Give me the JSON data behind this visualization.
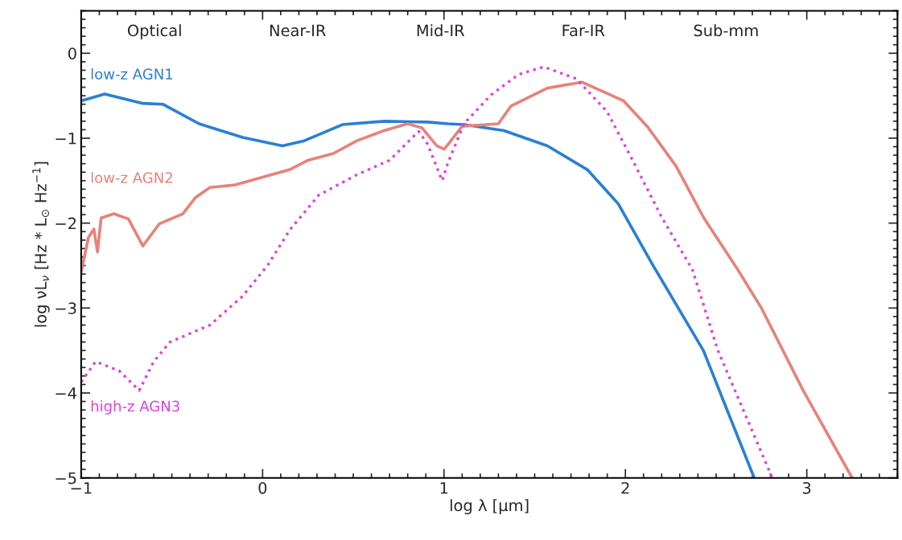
{
  "chart_data": {
    "type": "line",
    "xlabel": "log λ [μm]",
    "ylabel": "log νL$_{ν}$ [Hz * L$_{⊙}$ Hz$^{−1}$]",
    "xlim": [
      -1,
      3.5
    ],
    "ylim": [
      -5,
      0.5
    ],
    "xticks": [
      {
        "value": -1,
        "label": "−1"
      },
      0,
      1,
      2,
      3
    ],
    "yticks": [
      {
        "value": -5,
        "label": "−5"
      },
      {
        "value": -4,
        "label": "−4"
      },
      {
        "value": -3,
        "label": "−3"
      },
      {
        "value": -2,
        "label": "−2"
      },
      {
        "value": -1,
        "label": "−1"
      },
      0
    ],
    "grid": false,
    "legend": false,
    "marker": "none",
    "annotations": [
      "Optical",
      "Near-IR",
      "Mid-IR",
      "Far-IR",
      "Sub-mm"
    ],
    "series": [
      {
        "name": "low-z AGN1",
        "color": "#2a7fd4",
        "line_style": "solid",
        "x": [
          -1,
          -0.87,
          -0.66,
          -0.55,
          -0.35,
          -0.11,
          0.11,
          0.23,
          0.44,
          0.67,
          0.91,
          1.02,
          1.11,
          1.33,
          1.57,
          1.79,
          1.96,
          2.15,
          2.43,
          2.71
        ],
        "values": [
          -0.56,
          -0.48,
          -0.59,
          -0.6,
          -0.83,
          -0.99,
          -1.09,
          -1.03,
          -0.84,
          -0.8,
          -0.81,
          -0.83,
          -0.84,
          -0.91,
          -1.09,
          -1.37,
          -1.77,
          -2.49,
          -3.5,
          -5
        ]
      },
      {
        "name": "low-z AGN2",
        "color": "#e8827a",
        "line_style": "solid",
        "x": [
          -1,
          -0.96,
          -0.93,
          -0.91,
          -0.89,
          -0.82,
          -0.74,
          -0.66,
          -0.57,
          -0.44,
          -0.37,
          -0.29,
          -0.15,
          0.0,
          0.15,
          0.25,
          0.39,
          0.52,
          0.67,
          0.8,
          0.88,
          0.96,
          1.0,
          1.02,
          1.1,
          1.3,
          1.37,
          1.57,
          1.76,
          1.99,
          2.12,
          2.28,
          2.43,
          2.62,
          2.75,
          2.98,
          3.25
        ],
        "values": [
          -2.58,
          -2.17,
          -2.07,
          -2.34,
          -1.94,
          -1.89,
          -1.95,
          -2.27,
          -2.01,
          -1.89,
          -1.7,
          -1.58,
          -1.55,
          -1.46,
          -1.37,
          -1.26,
          -1.18,
          -1.03,
          -0.91,
          -0.83,
          -0.88,
          -1.09,
          -1.13,
          -1.08,
          -0.86,
          -0.83,
          -0.62,
          -0.41,
          -0.34,
          -0.56,
          -0.86,
          -1.33,
          -1.93,
          -2.55,
          -3.0,
          -3.97,
          -5
        ]
      },
      {
        "name": "high-z AGN3",
        "color": "#e040e0",
        "line_style": "dotted",
        "x": [
          -1,
          -0.92,
          -0.79,
          -0.68,
          -0.6,
          -0.51,
          -0.29,
          -0.11,
          0.03,
          0.15,
          0.31,
          0.52,
          0.7,
          0.86,
          0.91,
          0.99,
          1.02,
          1.11,
          1.26,
          1.41,
          1.55,
          1.73,
          1.9,
          2.04,
          2.2,
          2.37,
          2.51,
          2.81
        ],
        "values": [
          -3.87,
          -3.63,
          -3.74,
          -3.97,
          -3.63,
          -3.4,
          -3.2,
          -2.86,
          -2.49,
          -2.08,
          -1.67,
          -1.43,
          -1.26,
          -0.92,
          -1.07,
          -1.5,
          -1.3,
          -0.83,
          -0.49,
          -0.25,
          -0.16,
          -0.3,
          -0.69,
          -1.26,
          -1.93,
          -2.55,
          -3.5,
          -5
        ]
      }
    ]
  }
}
